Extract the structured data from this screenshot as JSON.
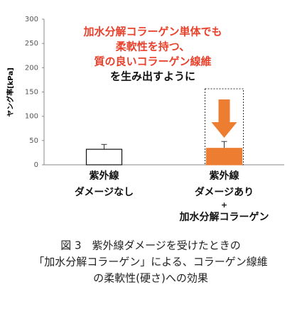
{
  "chart_data": {
    "type": "bar",
    "ylabel": "ヤング率[kPa]",
    "categories": [
      [
        "紫外線",
        "ダメージなし"
      ],
      [
        "紫外線",
        "ダメージあり",
        "+",
        "加水分解コラーゲン"
      ]
    ],
    "values": [
      32,
      34
    ],
    "errors": [
      10,
      14
    ],
    "colors": [
      "#ffffff",
      "#ed7d31"
    ],
    "ylim": [
      0,
      300
    ],
    "yticks": [
      0,
      50,
      100,
      150,
      200,
      250,
      300
    ],
    "annotation": [
      {
        "text": "加水分解コラーゲン単体でも",
        "color": "#e8412c"
      },
      {
        "text": "柔軟性を持つ、",
        "color": "#e8412c"
      },
      {
        "text": "質の良いコラーゲン線維",
        "color": "#e8412c"
      },
      {
        "text": "を生み出すように",
        "color": "#111111"
      }
    ],
    "caption": [
      "図 3　紫外線ダメージを受けたときの",
      "「加水分解コラーゲン」による、コラーゲン線維",
      "の柔軟性(硬さ)への効果"
    ]
  }
}
